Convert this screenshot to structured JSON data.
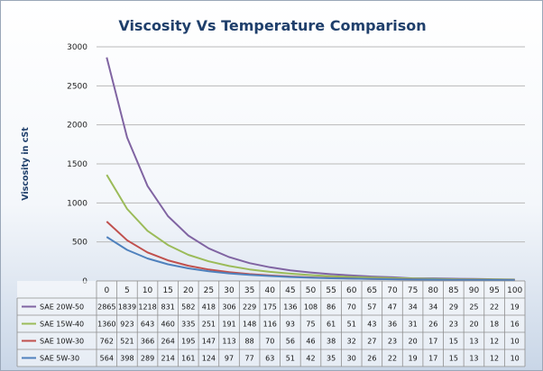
{
  "chart_data": {
    "type": "line",
    "title": "Viscosity Vs Temperature Comparison",
    "ylabel": "Viscosity in cSt",
    "xlabel": "",
    "ylim": [
      0,
      3000
    ],
    "yticks": [
      "0",
      "500",
      "1000",
      "1500",
      "2000",
      "2500",
      "3000"
    ],
    "categories": [
      "0",
      "5",
      "10",
      "15",
      "20",
      "25",
      "30",
      "35",
      "40",
      "45",
      "50",
      "55",
      "60",
      "65",
      "70",
      "75",
      "80",
      "85",
      "90",
      "95",
      "100"
    ],
    "grid": true,
    "legend": "data-table",
    "series": [
      {
        "name": "SAE 20W-50",
        "color": "#8064a2",
        "values": [
          2865,
          1839,
          1218,
          831,
          582,
          418,
          306,
          229,
          175,
          136,
          108,
          86,
          70,
          57,
          47,
          34,
          34,
          29,
          25,
          22,
          19
        ]
      },
      {
        "name": "SAE 15W-40",
        "color": "#9bbb59",
        "values": [
          1360,
          923,
          643,
          460,
          335,
          251,
          191,
          148,
          116,
          93,
          75,
          61,
          51,
          43,
          36,
          31,
          26,
          23,
          20,
          18,
          16
        ]
      },
      {
        "name": "SAE 10W-30",
        "color": "#c0504d",
        "values": [
          762,
          521,
          366,
          264,
          195,
          147,
          113,
          88,
          70,
          56,
          46,
          38,
          32,
          27,
          23,
          20,
          17,
          15,
          13,
          12,
          10
        ]
      },
      {
        "name": "SAE 5W-30",
        "color": "#4f81bd",
        "values": [
          564,
          398,
          289,
          214,
          161,
          124,
          97,
          77,
          63,
          51,
          42,
          35,
          30,
          26,
          22,
          19,
          17,
          15,
          13,
          12,
          10
        ]
      }
    ]
  }
}
